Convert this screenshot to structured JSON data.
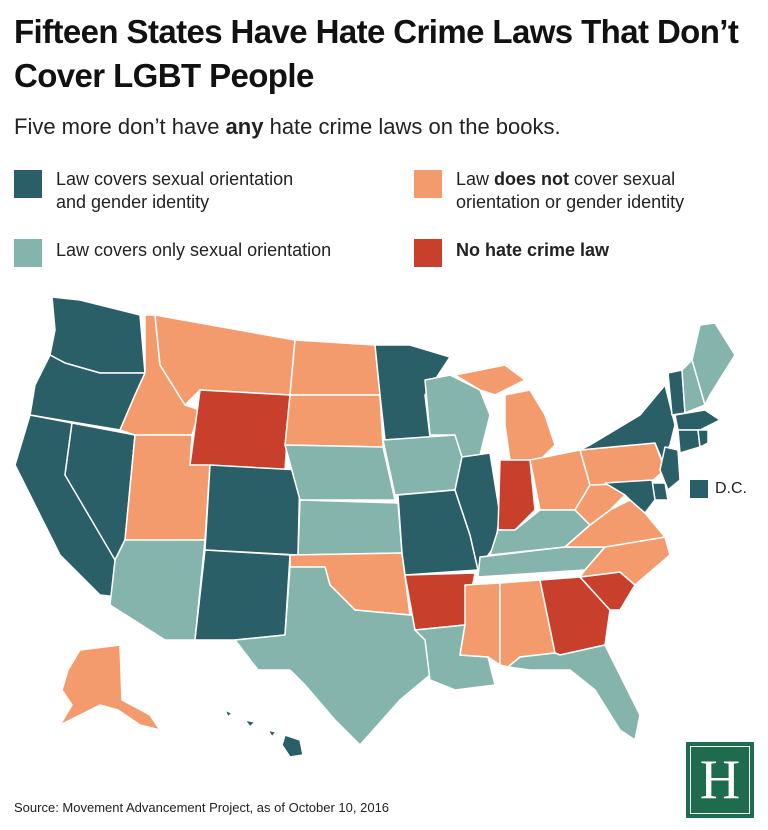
{
  "title": "Fifteen States Have Hate Crime Laws That Don’t Cover LGBT People",
  "subtitle": {
    "before": "Five more don’t have ",
    "bold": "any",
    "after": " hate crime laws on the books."
  },
  "legend": {
    "covers_both": {
      "label_line1": "Law covers sexual orientation",
      "label_line2": "and gender identity",
      "color": "#2a5f68"
    },
    "not_covered": {
      "label_before": "Law ",
      "label_bold": "does not",
      "label_after": " cover sexual",
      "label_line2": "orientation or gender identity",
      "color": "#f39b6d"
    },
    "orientation_only": {
      "label": "Law covers only sexual orientation",
      "color": "#84b4ac"
    },
    "no_law": {
      "label": "No hate crime law",
      "color": "#c83f2b"
    }
  },
  "map": {
    "dc_label": "D.C.",
    "dc_category": "covers_both",
    "state_categories": {
      "covers_both": [
        "WA",
        "OR",
        "CA",
        "NV",
        "CO",
        "NM",
        "MN",
        "IL",
        "MO",
        "VT",
        "MA",
        "RI",
        "CT",
        "NJ",
        "DE",
        "MD",
        "NY",
        "HI",
        "DC"
      ],
      "orientation_only": [
        "AZ",
        "TX",
        "NE",
        "KS",
        "IA",
        "WI",
        "KY",
        "TN",
        "LA",
        "FL",
        "NH",
        "ME"
      ],
      "not_covered": [
        "ID",
        "MT",
        "UT",
        "ND",
        "SD",
        "OK",
        "MI",
        "OH",
        "PA",
        "WV",
        "VA",
        "NC",
        "AL",
        "MS",
        "AK"
      ],
      "no_law": [
        "WY",
        "AR",
        "IN",
        "GA",
        "SC"
      ]
    }
  },
  "source": "Source: Movement Advancement Project, as of October 10, 2016",
  "logo": {
    "letter": "H",
    "color": "#1f6b4d"
  }
}
